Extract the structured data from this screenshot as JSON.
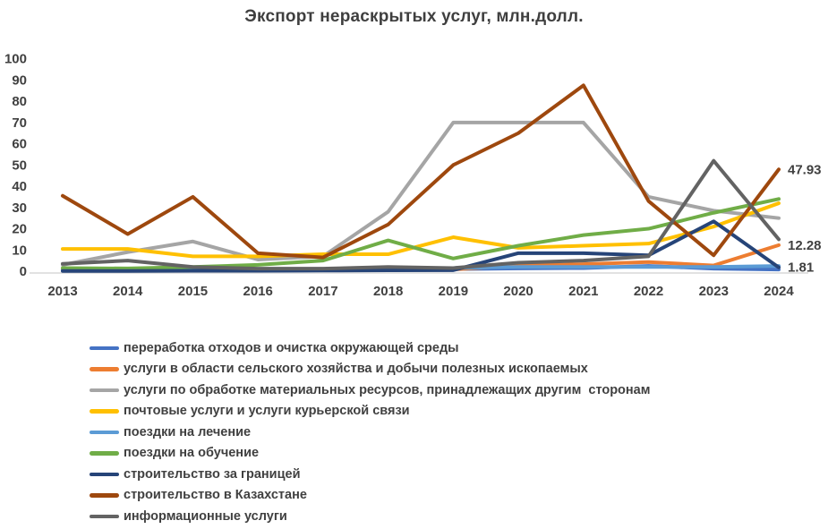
{
  "chart_data": {
    "type": "line",
    "title": "Экспорт нераскрытых услуг, млн.долл.",
    "categories": [
      "2013",
      "2014",
      "2015",
      "2016",
      "2017",
      "2018",
      "2019",
      "2020",
      "2021",
      "2022",
      "2023",
      "2024"
    ],
    "yticks": [
      0,
      10,
      20,
      30,
      40,
      50,
      60,
      70,
      80,
      90,
      100
    ],
    "ylim": [
      0,
      100
    ],
    "xlabel": "",
    "ylabel": "",
    "grid": false,
    "legend_position": "bottom-left",
    "series": [
      {
        "name": "переработка отходов и очистка окружающей среды",
        "color": "#4472C4",
        "values": [
          0.3,
          0.3,
          0.3,
          0.3,
          0.4,
          0.5,
          1.0,
          1.3,
          1.5,
          2.5,
          1.2,
          0.8
        ]
      },
      {
        "name": "услуги в области сельского хозяйства и добычи полезных ископаемых",
        "color": "#ED7D31",
        "values": [
          0.8,
          1.2,
          1.0,
          0.8,
          0.8,
          1.2,
          0.8,
          2.7,
          3.3,
          4.3,
          2.7,
          12.28
        ]
      },
      {
        "name": "услуги по обработке материальных ресурсов, принадлежащих другим  сторонам",
        "color": "#A5A5A5",
        "values": [
          3.0,
          9.0,
          14.0,
          5.5,
          7.0,
          28.0,
          70.0,
          70.0,
          70.0,
          35.0,
          28.5,
          25.0
        ]
      },
      {
        "name": "почтовые услуги и услуги курьерской связи",
        "color": "#FFC000",
        "values": [
          10.5,
          10.5,
          7.0,
          7.0,
          8.0,
          8.0,
          16.0,
          11.0,
          12.0,
          13.0,
          21.0,
          32.0
        ]
      },
      {
        "name": "поездки на лечение",
        "color": "#5B9BD5",
        "values": [
          0.5,
          0.8,
          1.0,
          0.8,
          0.8,
          1.0,
          1.5,
          2.0,
          2.0,
          2.0,
          2.0,
          2.5
        ]
      },
      {
        "name": "поездки на обучение",
        "color": "#70AD47",
        "values": [
          1.5,
          1.3,
          2.0,
          3.0,
          5.0,
          14.5,
          6.0,
          12.0,
          17.0,
          20.0,
          27.5,
          34.0
        ]
      },
      {
        "name": "строительство за границей",
        "color": "#264478",
        "values": [
          0.1,
          0.1,
          0.2,
          0.2,
          0.3,
          0.4,
          0.5,
          8.5,
          8.5,
          7.5,
          23.5,
          1.81
        ]
      },
      {
        "name": "строительство в Казахстане",
        "color": "#9E480E",
        "values": [
          35.5,
          17.5,
          35.0,
          8.5,
          6.5,
          22.0,
          50.0,
          65.0,
          87.5,
          33.0,
          7.5,
          47.93
        ]
      },
      {
        "name": "информационные услуги",
        "color": "#636363",
        "values": [
          3.5,
          5.0,
          2.0,
          1.2,
          1.2,
          2.0,
          1.5,
          4.0,
          5.0,
          7.0,
          52.0,
          15.0
        ]
      }
    ],
    "annotations": [
      {
        "text": "47.93",
        "series_index": 7
      },
      {
        "text": "12.28",
        "series_index": 1
      },
      {
        "text": "1.81",
        "series_index": 6
      }
    ]
  },
  "style": {
    "text_color": "#404040",
    "axis_line_color": "#D9D9D9",
    "background": "#FFFFFF"
  }
}
